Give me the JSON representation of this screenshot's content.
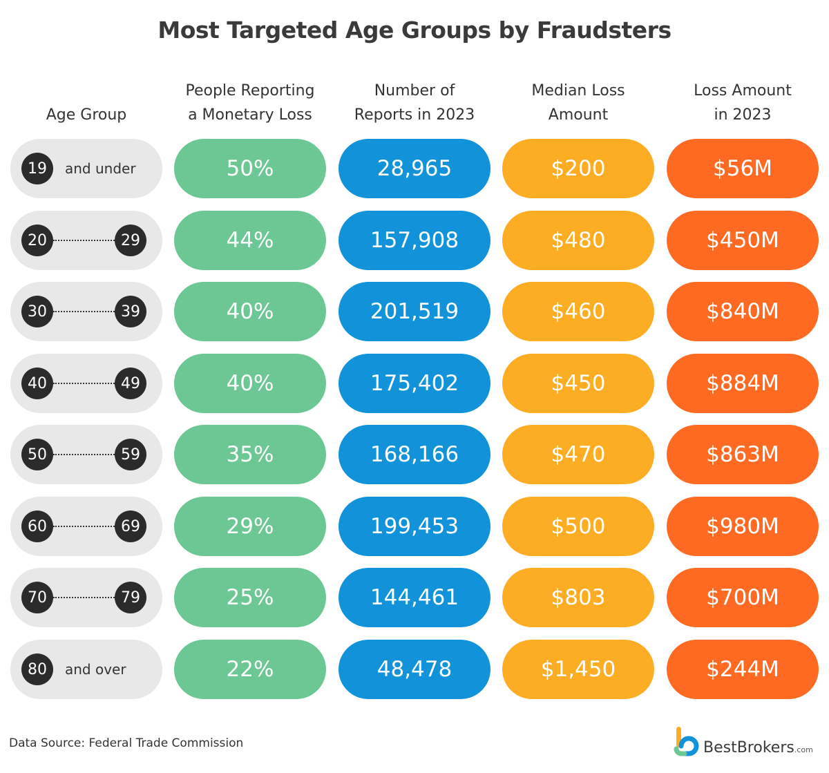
{
  "title": "Most Targeted Age Groups by Fraudsters",
  "headers": [
    "Age Group",
    "People Reporting\na Monetary Loss",
    "Number of\nReports in 2023",
    "Median Loss\nAmount",
    "Loss Amount\nin 2023"
  ],
  "rows": [
    {
      "age_start": "19",
      "age_word": "and under",
      "pct": "50%",
      "reports": "28,965",
      "median": "$200",
      "loss": "$56M"
    },
    {
      "age_start": "20",
      "age_end": "29",
      "pct": "44%",
      "reports": "157,908",
      "median": "$480",
      "loss": "$450M"
    },
    {
      "age_start": "30",
      "age_end": "39",
      "pct": "40%",
      "reports": "201,519",
      "median": "$460",
      "loss": "$840M"
    },
    {
      "age_start": "40",
      "age_end": "49",
      "pct": "40%",
      "reports": "175,402",
      "median": "$450",
      "loss": "$884M"
    },
    {
      "age_start": "50",
      "age_end": "59",
      "pct": "35%",
      "reports": "168,166",
      "median": "$470",
      "loss": "$863M"
    },
    {
      "age_start": "60",
      "age_end": "69",
      "pct": "29%",
      "reports": "199,453",
      "median": "$500",
      "loss": "$980M"
    },
    {
      "age_start": "70",
      "age_end": "79",
      "pct": "25%",
      "reports": "144,461",
      "median": "$803",
      "loss": "$700M"
    },
    {
      "age_start": "80",
      "age_word": "and over",
      "pct": "22%",
      "reports": "48,478",
      "median": "$1,450",
      "loss": "$244M"
    }
  ],
  "colors": {
    "age_pill": "#e8e8e8",
    "age_circle": "#2b2b2b",
    "pct": "#6cc795",
    "reports": "#1192d9",
    "median": "#fcad24",
    "loss": "#fe6a21"
  },
  "source": "Data Source: Federal Trade Commission",
  "logo": {
    "name": "BestBrokers",
    "suffix": ".com",
    "icon": "bestbrokers-logo-icon"
  },
  "chart_data": {
    "type": "table",
    "title": "Most Targeted Age Groups by Fraudsters",
    "columns": [
      "Age Group",
      "People Reporting a Monetary Loss",
      "Number of Reports in 2023",
      "Median Loss Amount",
      "Loss Amount in 2023"
    ],
    "rows": [
      [
        "19 and under",
        "50%",
        "28,965",
        "$200",
        "$56M"
      ],
      [
        "20-29",
        "44%",
        "157,908",
        "$480",
        "$450M"
      ],
      [
        "30-39",
        "40%",
        "201,519",
        "$460",
        "$840M"
      ],
      [
        "40-49",
        "40%",
        "175,402",
        "$450",
        "$884M"
      ],
      [
        "50-59",
        "35%",
        "168,166",
        "$470",
        "$863M"
      ],
      [
        "60-69",
        "29%",
        "199,453",
        "$500",
        "$980M"
      ],
      [
        "70-79",
        "25%",
        "144,461",
        "$803",
        "$700M"
      ],
      [
        "80 and over",
        "22%",
        "48,478",
        "$1,450",
        "$244M"
      ]
    ]
  }
}
